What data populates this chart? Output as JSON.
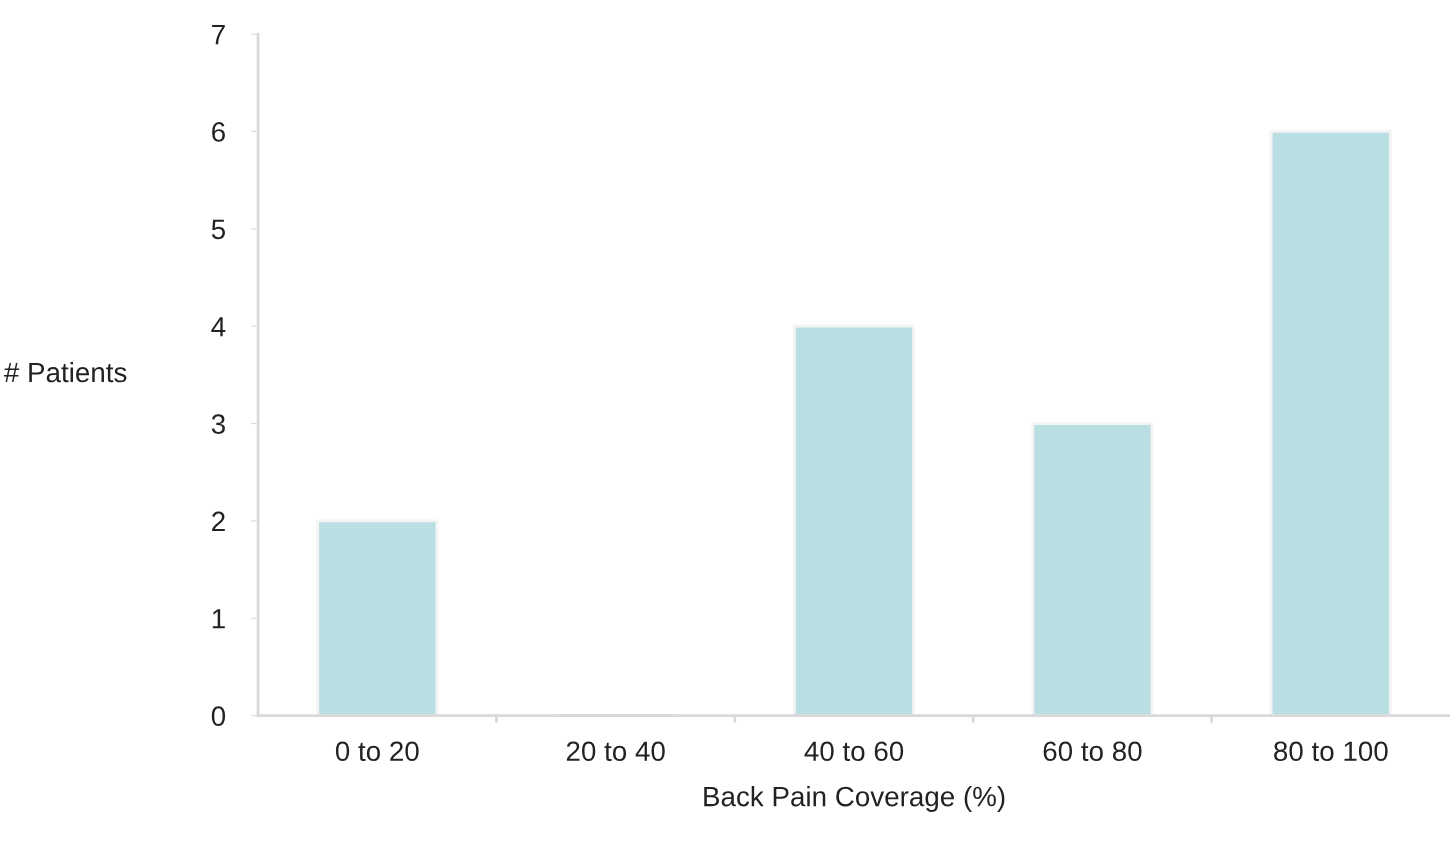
{
  "chart_data": {
    "type": "bar",
    "xlabel": "Back Pain Coverage (%)",
    "ylabel": "# Patients",
    "categories": [
      "0 to 20",
      "20 to 40",
      "40 to 60",
      "60 to 80",
      "80 to 100"
    ],
    "values": [
      2,
      0,
      4,
      3,
      6
    ],
    "color": "#b9dfe3",
    "ylim": [
      0,
      7
    ],
    "yticks": [
      0,
      1,
      2,
      3,
      4,
      5,
      6,
      7
    ],
    "grid": false,
    "legend": false
  }
}
